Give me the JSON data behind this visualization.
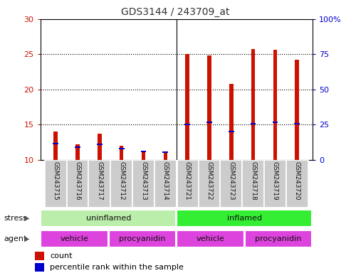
{
  "title": "GDS3144 / 243709_at",
  "samples": [
    "GSM243715",
    "GSM243716",
    "GSM243717",
    "GSM243712",
    "GSM243713",
    "GSM243714",
    "GSM243721",
    "GSM243722",
    "GSM243723",
    "GSM243718",
    "GSM243719",
    "GSM243720"
  ],
  "counts": [
    14.0,
    12.2,
    13.7,
    12.0,
    11.2,
    11.1,
    25.0,
    24.8,
    20.8,
    25.7,
    25.6,
    24.2
  ],
  "percentile_values": [
    12.3,
    11.8,
    12.2,
    11.6,
    11.2,
    11.1,
    15.0,
    15.3,
    14.0,
    15.1,
    15.3,
    15.1
  ],
  "ylim_left": [
    10,
    30
  ],
  "ylim_right": [
    0,
    100
  ],
  "yticks_left": [
    10,
    15,
    20,
    25,
    30
  ],
  "yticks_right": [
    0,
    25,
    50,
    75,
    100
  ],
  "ytick_labels_right": [
    "0",
    "25",
    "50",
    "75",
    "100%"
  ],
  "bar_color_red": "#cc1100",
  "bar_color_blue": "#0000cc",
  "stress_groups": [
    {
      "label": "uninflamed",
      "start": 0,
      "end": 6,
      "color": "#bbeeaa"
    },
    {
      "label": "inflamed",
      "start": 6,
      "end": 12,
      "color": "#33ee33"
    }
  ],
  "agent_groups": [
    {
      "label": "vehicle",
      "start": 0,
      "end": 3
    },
    {
      "label": "procyanidin",
      "start": 3,
      "end": 6
    },
    {
      "label": "vehicle",
      "start": 6,
      "end": 9
    },
    {
      "label": "procyanidin",
      "start": 9,
      "end": 12
    }
  ],
  "agent_color": "#dd44dd",
  "legend_count_label": "count",
  "legend_percentile_label": "percentile rank within the sample",
  "stress_label": "stress",
  "agent_label": "agent",
  "bg_color": "#ffffff",
  "plot_bg_color": "#ffffff",
  "sample_bg_color": "#cccccc",
  "grid_color": "#000000",
  "left_axis_color": "#cc1100",
  "right_axis_color": "#0000cc",
  "bar_width": 0.18,
  "blue_marker_size": 0.25
}
